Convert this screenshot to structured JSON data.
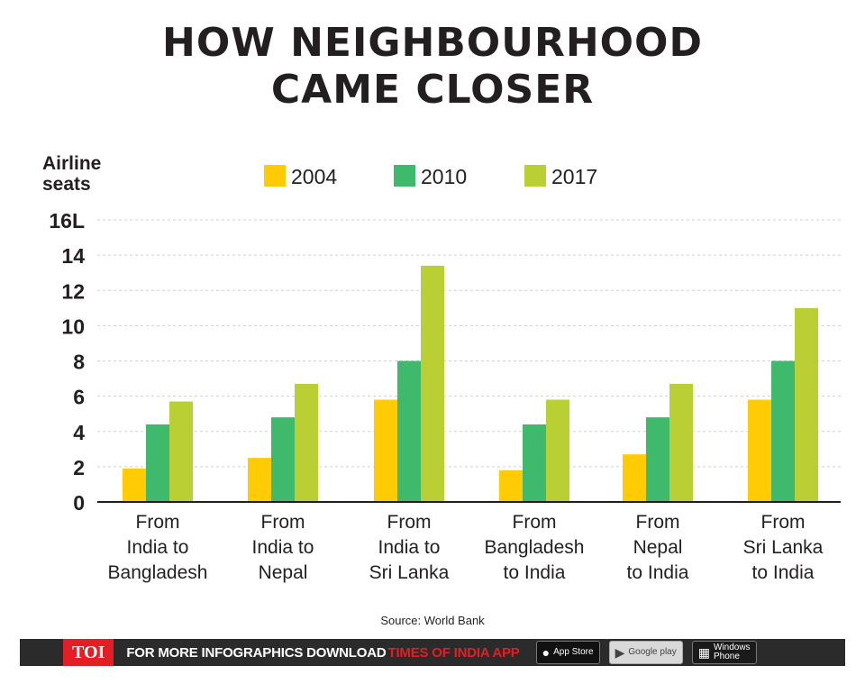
{
  "title_line1": "HOW NEIGHBOURHOOD",
  "title_line2": "CAME CLOSER",
  "chart_data": {
    "type": "bar",
    "ylabel_line1": "Airline",
    "ylabel_line2": "seats",
    "categories": [
      [
        "From",
        "India to",
        "Bangladesh"
      ],
      [
        "From",
        "India to",
        "Nepal"
      ],
      [
        "From",
        "India to",
        "Sri Lanka"
      ],
      [
        "From",
        "Bangladesh",
        "to India"
      ],
      [
        "From",
        "Nepal",
        "to India"
      ],
      [
        "From",
        "Sri Lanka",
        "to India"
      ]
    ],
    "series": [
      {
        "name": "2004",
        "color": "#ffcb05",
        "values": [
          1.9,
          2.5,
          5.8,
          1.8,
          2.7,
          5.8
        ]
      },
      {
        "name": "2010",
        "color": "#3fb96b",
        "values": [
          4.4,
          4.8,
          8.0,
          4.4,
          4.8,
          8.0
        ]
      },
      {
        "name": "2017",
        "color": "#b9cf33",
        "values": [
          5.7,
          6.7,
          13.4,
          5.8,
          6.7,
          11.0
        ]
      }
    ],
    "ylim": [
      0,
      16
    ],
    "yticks": [
      "0",
      "2",
      "4",
      "6",
      "8",
      "10",
      "12",
      "14",
      "16L"
    ],
    "grid": true,
    "legend": "top"
  },
  "source": "Source: World Bank",
  "footer": {
    "logo": "TOI",
    "text": "FOR MORE  INFOGRAPHICS DOWNLOAD",
    "app": "TIMES OF INDIA APP",
    "appstore_small": "Available on the",
    "appstore": "App Store",
    "googleplay": "Google play",
    "windows_line1": "Windows",
    "windows_line2": "Phone"
  },
  "colors": {
    "gridline": "#cfcfcf",
    "axis": "#231f20",
    "text": "#231f20"
  }
}
